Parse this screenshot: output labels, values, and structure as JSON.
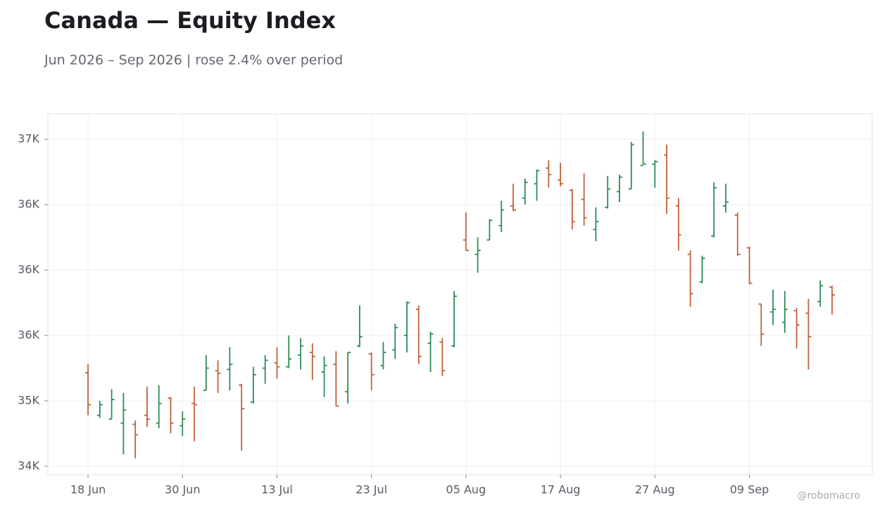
{
  "chart_data": {
    "type": "ohlc",
    "title": "Canada — Equity Index",
    "subtitle": "Jun 2026 – Sep 2026 | rose 2.4% over period",
    "credit": "@robomacro",
    "up_color": "#2e8b57",
    "down_color": "#c0603c",
    "grid": true,
    "categories": [
      "18 Jun",
      null,
      null,
      null,
      null,
      null,
      null,
      null,
      "30 Jun",
      null,
      null,
      null,
      null,
      null,
      null,
      null,
      "13 Jul",
      null,
      null,
      null,
      null,
      null,
      null,
      null,
      "23 Jul",
      null,
      null,
      null,
      null,
      null,
      null,
      null,
      "05 Aug",
      null,
      null,
      null,
      null,
      null,
      null,
      null,
      "17 Aug",
      null,
      null,
      null,
      null,
      null,
      null,
      null,
      "27 Aug",
      null,
      null,
      null,
      null,
      null,
      null,
      null,
      "09 Sep",
      null,
      null,
      null,
      null,
      null,
      null,
      null
    ],
    "open": [
      35215,
      34890,
      34860,
      34830,
      34820,
      34890,
      34830,
      35020,
      34810,
      34980,
      35080,
      35230,
      35240,
      35120,
      34990,
      35250,
      35290,
      35260,
      35350,
      35370,
      35220,
      35280,
      35070,
      35420,
      35360,
      35270,
      35390,
      35500,
      35700,
      35440,
      35450,
      35420,
      36230,
      36120,
      36230,
      36340,
      36490,
      36550,
      36660,
      36780,
      36690,
      36610,
      36540,
      36310,
      36480,
      36600,
      36620,
      36800,
      36810,
      36880,
      36490,
      36120,
      35910,
      36260,
      36490,
      36420,
      36170,
      35740,
      35680,
      35600,
      35690,
      35670,
      35760,
      35870
    ],
    "high": [
      35280,
      35000,
      35090,
      35060,
      34850,
      35110,
      35120,
      35030,
      34920,
      35110,
      35350,
      35310,
      35410,
      35130,
      35260,
      35350,
      35410,
      35500,
      35480,
      35440,
      35340,
      35380,
      35370,
      35730,
      35370,
      35450,
      35590,
      35760,
      35730,
      35530,
      35480,
      35840,
      36440,
      36250,
      36390,
      36530,
      36660,
      36700,
      36770,
      36840,
      36820,
      36620,
      36740,
      36480,
      36720,
      36730,
      36980,
      37060,
      36840,
      36960,
      36550,
      36150,
      36110,
      36670,
      36660,
      36440,
      36180,
      35740,
      35850,
      35840,
      35710,
      35780,
      35920,
      35880
    ],
    "low": [
      34890,
      34870,
      34860,
      34590,
      34560,
      34800,
      34790,
      34750,
      34730,
      34690,
      35080,
      35060,
      35080,
      34620,
      34980,
      35130,
      35170,
      35250,
      35240,
      35160,
      35030,
      34960,
      34980,
      35410,
      35080,
      35240,
      35320,
      35370,
      35280,
      35220,
      35190,
      35410,
      36150,
      35980,
      36230,
      36290,
      36450,
      36500,
      36530,
      36630,
      36640,
      36310,
      36340,
      36220,
      36470,
      36520,
      36620,
      36810,
      36630,
      36430,
      36150,
      35720,
      35900,
      36250,
      36440,
      36110,
      35890,
      35420,
      35580,
      35520,
      35400,
      35240,
      35720,
      35660
    ],
    "close": [
      34970,
      34970,
      35010,
      34930,
      34740,
      34860,
      34980,
      34830,
      34860,
      34970,
      35250,
      35210,
      35280,
      34940,
      35200,
      35310,
      35260,
      35320,
      35420,
      35340,
      35270,
      34960,
      35370,
      35490,
      35200,
      35370,
      35560,
      35750,
      35340,
      35510,
      35230,
      35800,
      36150,
      36150,
      36380,
      36460,
      36460,
      36670,
      36760,
      36730,
      36660,
      36370,
      36400,
      36370,
      36620,
      36710,
      36960,
      36810,
      36830,
      36550,
      36270,
      35820,
      36090,
      36630,
      36520,
      36120,
      35900,
      35510,
      35700,
      35700,
      35580,
      35490,
      35880,
      35810
    ],
    "ylim": [
      34435,
      37194
    ],
    "yticks": [
      {
        "value": 34500,
        "label": "34K"
      },
      {
        "value": 35000,
        "label": "35K"
      },
      {
        "value": 35500,
        "label": "36K"
      },
      {
        "value": 36000,
        "label": "36K"
      },
      {
        "value": 36500,
        "label": "36K"
      },
      {
        "value": 37000,
        "label": "37K"
      }
    ]
  }
}
